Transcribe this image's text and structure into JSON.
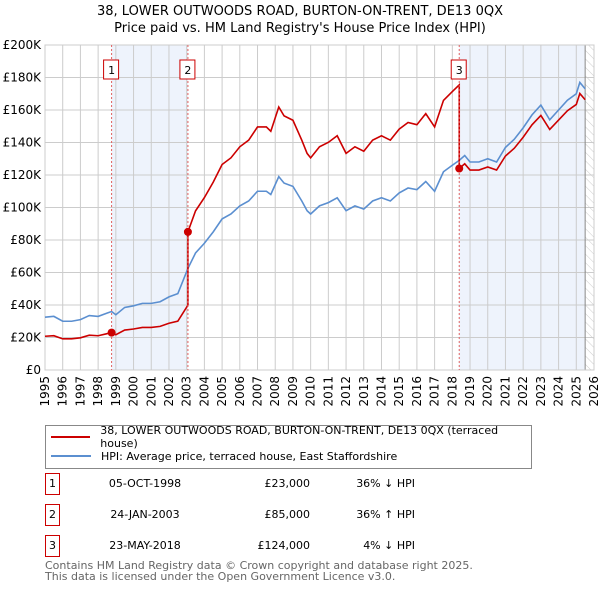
{
  "title_line1": "38, LOWER OUTWOODS ROAD, BURTON-ON-TRENT, DE13 0QX",
  "title_line2": "Price paid vs. HM Land Registry's House Price Index (HPI)",
  "legend": {
    "price_paid": "38, LOWER OUTWOODS ROAD, BURTON-ON-TRENT, DE13 0QX (terraced house)",
    "hpi": "HPI: Average price, terraced house, East Staffordshire"
  },
  "sales": [
    {
      "num": "1",
      "date": "05-OCT-1998",
      "price": "£23,000",
      "hpi_diff": "36% ↓ HPI",
      "t": 1998.76,
      "value": 23
    },
    {
      "num": "2",
      "date": "24-JAN-2003",
      "price": "£85,000",
      "hpi_diff": "36% ↑ HPI",
      "t": 2003.07,
      "value": 85
    },
    {
      "num": "3",
      "date": "23-MAY-2018",
      "price": "£124,000",
      "hpi_diff": "4% ↓ HPI",
      "t": 2018.39,
      "value": 124
    }
  ],
  "footer": {
    "line1": "Contains HM Land Registry data © Crown copyright and database right 2025.",
    "line2": "This data is licensed under the Open Government Licence v3.0."
  },
  "colors": {
    "price_paid": "#cc0000",
    "hpi": "#5b8fd0",
    "shade": "#eef3fc",
    "grid": "#cccccc"
  },
  "chart_data": {
    "type": "line",
    "title": "38, LOWER OUTWOODS ROAD, BURTON-ON-TRENT, DE13 0QX — Price paid vs. HM Land Registry's House Price Index (HPI)",
    "xlabel": "",
    "ylabel": "",
    "xlim": [
      1995,
      2026
    ],
    "ylim": [
      0,
      200
    ],
    "y_unit": "£K",
    "yticks": [
      "£0",
      "£20K",
      "£40K",
      "£60K",
      "£80K",
      "£100K",
      "£120K",
      "£140K",
      "£160K",
      "£180K",
      "£200K"
    ],
    "xticks": [
      "1995",
      "1996",
      "1997",
      "1998",
      "1999",
      "2000",
      "2001",
      "2002",
      "2003",
      "2004",
      "2005",
      "2006",
      "2007",
      "2008",
      "2009",
      "2010",
      "2011",
      "2012",
      "2013",
      "2014",
      "2015",
      "2016",
      "2017",
      "2018",
      "2019",
      "2020",
      "2021",
      "2022",
      "2023",
      "2024",
      "2025",
      "2026"
    ],
    "data_end": 2025.5,
    "grid": true,
    "legend_position": "bottom",
    "hpi_series": {
      "name": "HPI: Average price, terraced house, East Staffordshire",
      "x": [
        1995,
        1995.5,
        1996,
        1996.5,
        1997,
        1997.5,
        1998,
        1998.5,
        1998.76,
        1999,
        1999.5,
        2000,
        2000.5,
        2001,
        2001.5,
        2002,
        2002.5,
        2003.07,
        2003.5,
        2004,
        2004.5,
        2005,
        2005.5,
        2006,
        2006.5,
        2007,
        2007.5,
        2007.75,
        2008.2,
        2008.5,
        2009,
        2009.5,
        2009.8,
        2010,
        2010.5,
        2011,
        2011.5,
        2012,
        2012.5,
        2013,
        2013.5,
        2014,
        2014.5,
        2015,
        2015.5,
        2016,
        2016.5,
        2017,
        2017.5,
        2018,
        2018.39,
        2018.7,
        2019,
        2019.5,
        2020,
        2020.5,
        2021,
        2021.5,
        2022,
        2022.5,
        2023,
        2023.5,
        2024,
        2024.5,
        2025,
        2025.2,
        2025.5
      ],
      "y": [
        32.5,
        33,
        30,
        30,
        31,
        33.5,
        33,
        35,
        36,
        34,
        38.5,
        39.5,
        41,
        41,
        42,
        45,
        47,
        62.5,
        72,
        78,
        85,
        93,
        96,
        101,
        104,
        110,
        110,
        108,
        119,
        115,
        113,
        104,
        98,
        96,
        101,
        103,
        106,
        98,
        101,
        99,
        104,
        106,
        104,
        109,
        112,
        111,
        116,
        110,
        122,
        126,
        129,
        132,
        128,
        128,
        130,
        128,
        137,
        142,
        149,
        157,
        163,
        154,
        160,
        166,
        170,
        177,
        173
      ]
    },
    "price_paid_series": {
      "name": "38, LOWER OUTWOODS ROAD, BURTON-ON-TRENT, DE13 0QX (terraced house)",
      "method": "sale price indexed by HPI from most recent sale"
    }
  }
}
